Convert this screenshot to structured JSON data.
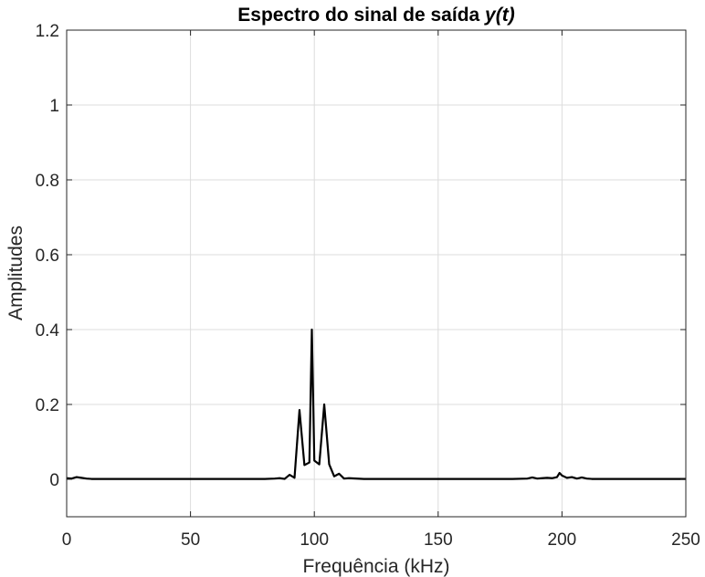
{
  "chart_data": {
    "type": "line",
    "title": "Espectro do sinal de saída ",
    "title_variable": "y(t)",
    "xlabel": "Frequência (kHz)",
    "ylabel": "Amplitudes",
    "xlim": [
      0,
      250
    ],
    "ylim": [
      -0.1,
      1.2
    ],
    "xticks": [
      0,
      50,
      100,
      150,
      200,
      250
    ],
    "xtick_labels": [
      "0",
      "50",
      "100",
      "150",
      "200",
      "250"
    ],
    "yticks": [
      0,
      0.2,
      0.4,
      0.6,
      0.8,
      1,
      1.2
    ],
    "ytick_labels": [
      "0",
      "0.2",
      "0.4",
      "0.6",
      "0.8",
      "1",
      "1.2"
    ],
    "grid": true,
    "box": true,
    "series": [
      {
        "color": "#000000",
        "x": [
          0,
          2,
          4,
          6,
          8,
          10,
          20,
          40,
          60,
          80,
          84,
          86,
          88,
          90,
          92,
          94,
          96,
          98,
          99,
          100,
          102,
          104,
          106,
          108,
          110,
          112,
          114,
          120,
          140,
          160,
          180,
          186,
          188,
          190,
          192,
          194,
          196,
          198,
          199,
          200,
          202,
          204,
          206,
          208,
          210,
          212,
          220,
          240,
          250
        ],
        "y": [
          0.003,
          0.002,
          0.006,
          0.004,
          0.002,
          0.001,
          0.001,
          0.001,
          0.001,
          0.001,
          0.002,
          0.003,
          0.001,
          0.012,
          0.004,
          0.185,
          0.038,
          0.045,
          0.4,
          0.05,
          0.04,
          0.2,
          0.04,
          0.008,
          0.015,
          0.002,
          0.003,
          0.001,
          0.001,
          0.001,
          0.001,
          0.002,
          0.005,
          0.002,
          0.003,
          0.004,
          0.003,
          0.006,
          0.017,
          0.01,
          0.004,
          0.006,
          0.002,
          0.005,
          0.002,
          0.001,
          0.001,
          0.001,
          0.001
        ]
      }
    ]
  }
}
